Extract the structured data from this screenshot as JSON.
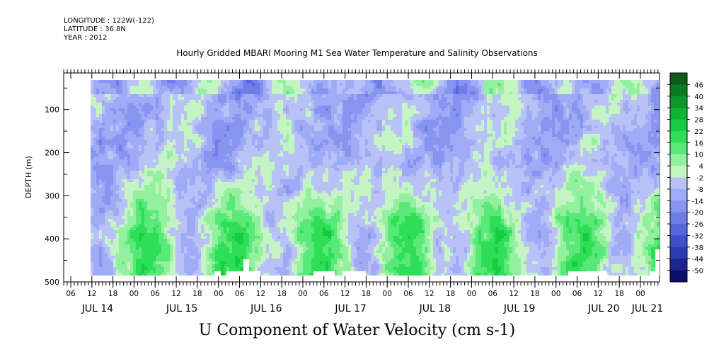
{
  "header": {
    "longitude": "LONGITUDE : 122W(-122)",
    "latitude": "LATITUDE : 36.8N",
    "year": "YEAR : 2012"
  },
  "main_title": "Hourly Gridded MBARI Mooring M1 Sea Water Temperature and Salinity Observations",
  "bottom_title": "U Component of Water Velocity (cm s-1)",
  "chart_data": {
    "type": "heatmap",
    "title": "Hourly Gridded MBARI Mooring M1 Sea Water Temperature and Salinity Observations",
    "ylabel": "DEPTH (m)",
    "xlabel": "",
    "variable": "U Component of Water Velocity (cm s-1)",
    "y_axis": {
      "ticks": [
        100,
        200,
        300,
        400,
        500
      ],
      "inverted": true,
      "range": [
        15,
        500
      ]
    },
    "x_axis": {
      "hour_ticks": [
        "06",
        "12",
        "18",
        "00",
        "06",
        "12",
        "18",
        "00",
        "06",
        "12",
        "18",
        "00",
        "06",
        "12",
        "18",
        "00",
        "06",
        "12",
        "18",
        "00",
        "06",
        "12",
        "18",
        "00",
        "06",
        "12",
        "18",
        "00"
      ],
      "day_labels": [
        "JUL 14",
        "JUL 15",
        "JUL 16",
        "JUL 17",
        "JUL 18",
        "JUL 19",
        "JUL 20",
        "JUL 21"
      ]
    },
    "colorbar": {
      "levels": [
        "46",
        "40",
        "34",
        "28",
        "22",
        "16",
        "10",
        "4",
        "-2",
        "-8",
        "-14",
        "-20",
        "-26",
        "-32",
        "-38",
        "-44",
        "-50"
      ],
      "colors": [
        "#0a5c1c",
        "#0b7a24",
        "#0d962c",
        "#10b336",
        "#17cc44",
        "#2ede57",
        "#5ae878",
        "#93f09e",
        "#c4f4c3",
        "#b8c2f6",
        "#9fabf5",
        "#8795f0",
        "#6f7de6",
        "#5666dd",
        "#3d4fcc",
        "#2a3bb3",
        "#1a2590",
        "#0a0f6a"
      ]
    },
    "day_profiles": {
      "times_hours": [
        0,
        6,
        12,
        18,
        24,
        30,
        36,
        42,
        48,
        54,
        60,
        66,
        72,
        78,
        84,
        90,
        96,
        102,
        108,
        114,
        120,
        126,
        132,
        138,
        144,
        150,
        156,
        162
      ],
      "note_values_cm_s": "estimated u-velocity: upper layer mostly negative (blue), lower layer alternating positive (green) bands"
    }
  }
}
